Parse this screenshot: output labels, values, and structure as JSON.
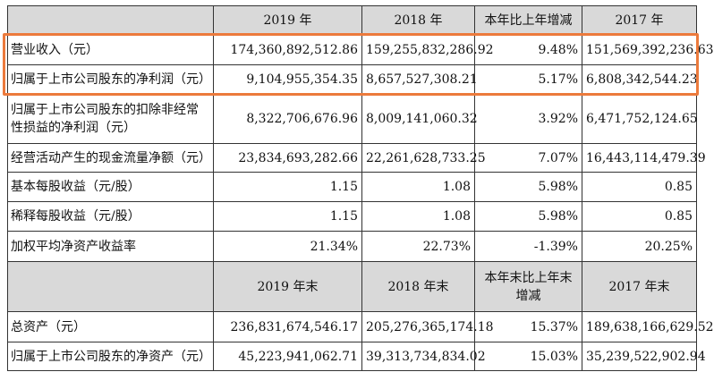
{
  "table1": {
    "header": [
      "2019 年",
      "2018 年",
      "本年比上年增减",
      "2017 年"
    ],
    "rows": [
      [
        "营业收入（元）",
        "174,360,892,512.86",
        "159,255,832,286.92",
        "9.48%",
        "151,569,392,236.63"
      ],
      [
        "归属于上市公司股东的净利润（元）",
        "9,104,955,354.35",
        "8,657,527,308.21",
        "5.17%",
        "6,808,342,544.23"
      ],
      [
        "归属于上市公司股东的扣除非经常性损益的净利润（元）",
        "8,322,706,676.96",
        "8,009,141,060.32",
        "3.92%",
        "6,471,752,124.65"
      ],
      [
        "经营活动产生的现金流量净额（元）",
        "23,834,693,282.66",
        "22,261,628,733.25",
        "7.07%",
        "16,443,114,479.39"
      ],
      [
        "基本每股收益（元/股）",
        "1.15",
        "1.08",
        "5.98%",
        "0.85"
      ],
      [
        "稀释每股收益（元/股）",
        "1.15",
        "1.08",
        "5.98%",
        "0.85"
      ],
      [
        "加权平均净资产收益率",
        "21.34%",
        "22.73%",
        "-1.39%",
        "20.25%"
      ]
    ]
  },
  "table2": {
    "header": [
      "2019 年末",
      "2018 年末",
      "本年末比上年末增减",
      "2017 年末"
    ],
    "rows": [
      [
        "总资产（元）",
        "236,831,674,546.17",
        "205,276,365,174.18",
        "15.37%",
        "189,638,166,629.52"
      ],
      [
        "归属于上市公司股东的净资产（元）",
        "45,223,941,062.71",
        "39,313,734,834.02",
        "15.03%",
        "35,239,522,902.94"
      ]
    ]
  }
}
